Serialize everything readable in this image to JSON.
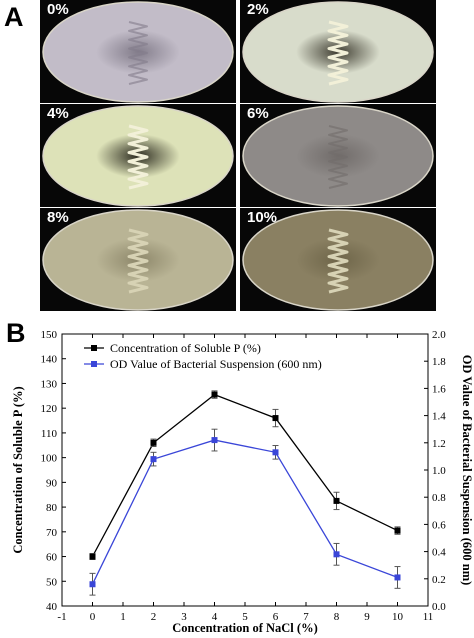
{
  "panel_a": {
    "letter": "A",
    "plates": [
      {
        "label": "0%",
        "dish": "#c2bcc8",
        "center": "#827c8a",
        "growth": "faint"
      },
      {
        "label": "2%",
        "dish": "#d8dccb",
        "center": "#3e3c30",
        "growth": "strong"
      },
      {
        "label": "4%",
        "dish": "#dde2b8",
        "center": "#2c2b1f",
        "growth": "strong"
      },
      {
        "label": "6%",
        "dish": "#8e8a88",
        "center": "#716c6a",
        "growth": "faint"
      },
      {
        "label": "8%",
        "dish": "#b9b495",
        "center": "#8d876a",
        "growth": "medium"
      },
      {
        "label": "10%",
        "dish": "#8a8062",
        "center": "#6e6549",
        "growth": "medium"
      }
    ]
  },
  "panel_b": {
    "letter": "B"
  },
  "chart_data": {
    "type": "line",
    "xlabel": "Concentration of NaCl (%)",
    "ylabel_left": "Concentration of Soluble P (%)",
    "ylabel_right": "OD Value of Bacterial Suspension (600 nm)",
    "xlim": [
      -1,
      11
    ],
    "x_ticks": [
      "-1",
      "0",
      "1",
      "2",
      "3",
      "4",
      "5",
      "6",
      "7",
      "8",
      "9",
      "10",
      "11"
    ],
    "ylim_left": [
      40,
      150
    ],
    "y_ticks_left": [
      "40",
      "50",
      "60",
      "70",
      "80",
      "90",
      "100",
      "110",
      "120",
      "130",
      "140",
      "150"
    ],
    "ylim_right": [
      0.0,
      2.0
    ],
    "y_ticks_right": [
      "0.0",
      "0.2",
      "0.4",
      "0.6",
      "0.8",
      "1.0",
      "1.2",
      "1.4",
      "1.6",
      "1.8",
      "2.0"
    ],
    "legend_position": "top-left",
    "series": [
      {
        "name": "Concentration of Soluble P (%)",
        "axis": "left",
        "color": "#000000",
        "x": [
          0,
          2,
          4,
          6,
          8,
          10
        ],
        "y": [
          60,
          106,
          125.5,
          116,
          82.5,
          70.5
        ],
        "error": [
          1.2,
          1.5,
          1.5,
          3.5,
          3.5,
          1.5
        ]
      },
      {
        "name": "OD Value of Bacterial Suspension (600 nm)",
        "axis": "right",
        "color": "#3a46d8",
        "x": [
          0,
          2,
          4,
          6,
          8,
          10
        ],
        "y": [
          0.16,
          1.08,
          1.22,
          1.13,
          0.38,
          0.21
        ],
        "error": [
          0.08,
          0.05,
          0.08,
          0.05,
          0.08,
          0.08
        ]
      }
    ]
  }
}
